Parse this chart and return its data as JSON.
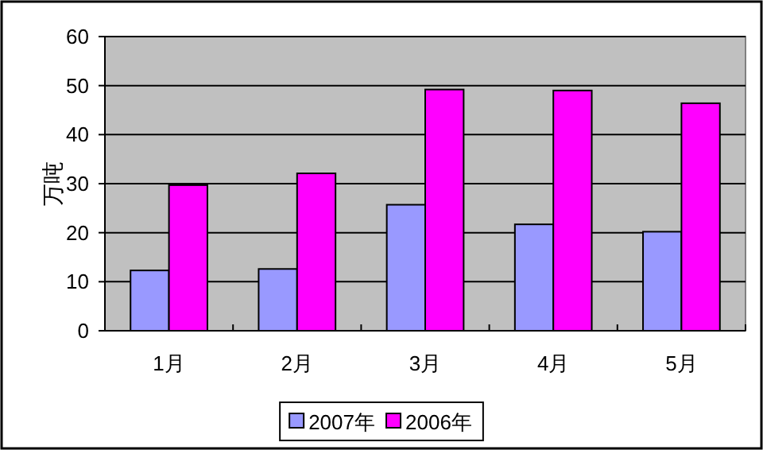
{
  "chart_data": {
    "type": "bar",
    "ylabel": "万吨",
    "categories": [
      "1月",
      "2月",
      "3月",
      "4月",
      "5月"
    ],
    "series": [
      {
        "name": "2007年",
        "color": "#9999ff",
        "values": [
          12.3,
          12.6,
          25.7,
          21.7,
          20.2
        ]
      },
      {
        "name": "2006年",
        "color": "#ff00ff",
        "values": [
          29.7,
          32.1,
          49.2,
          49.0,
          46.4
        ]
      }
    ],
    "ylim": [
      0,
      60
    ],
    "yticks": [
      0,
      10,
      20,
      30,
      40,
      50,
      60
    ],
    "grid": "y",
    "legend": "bottom"
  }
}
